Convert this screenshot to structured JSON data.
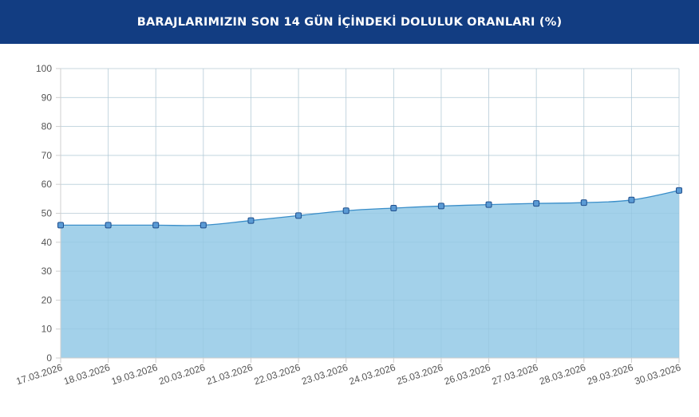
{
  "header": {
    "title": "BARAJLARIMIZIN SON 14 GÜN İÇİNDEKİ DOLULUK ORANLARI (%)"
  },
  "colors": {
    "header_bg": "#123d82",
    "area_fill": "#a3d1ea",
    "line": "#3a8ec9",
    "point_fill": "#5b9bd5",
    "point_stroke": "#1f4e8c",
    "grid": "#e3e3e3",
    "tick_text": "#555555"
  },
  "chart_data": {
    "type": "area",
    "title": "BARAJLARIMIZIN SON 14 GÜN İÇİNDEKİ DOLULUK ORANLARI (%)",
    "xlabel": "",
    "ylabel": "",
    "ylim": [
      0,
      100
    ],
    "yticks": [
      0,
      10,
      20,
      30,
      40,
      50,
      60,
      70,
      80,
      90,
      100
    ],
    "grid": true,
    "categories": [
      "17.03.2026",
      "18.03.2026",
      "19.03.2026",
      "20.03.2026",
      "21.03.2026",
      "22.03.2026",
      "23.03.2026",
      "24.03.2026",
      "25.03.2026",
      "26.03.2026",
      "27.03.2026",
      "28.03.2026",
      "29.03.2026",
      "30.03.2026"
    ],
    "series": [
      {
        "values": [
          45.9,
          45.9,
          45.9,
          45.9,
          47.5,
          49.2,
          50.9,
          51.8,
          52.5,
          53.0,
          53.4,
          53.7,
          54.6,
          57.9
        ]
      }
    ]
  }
}
